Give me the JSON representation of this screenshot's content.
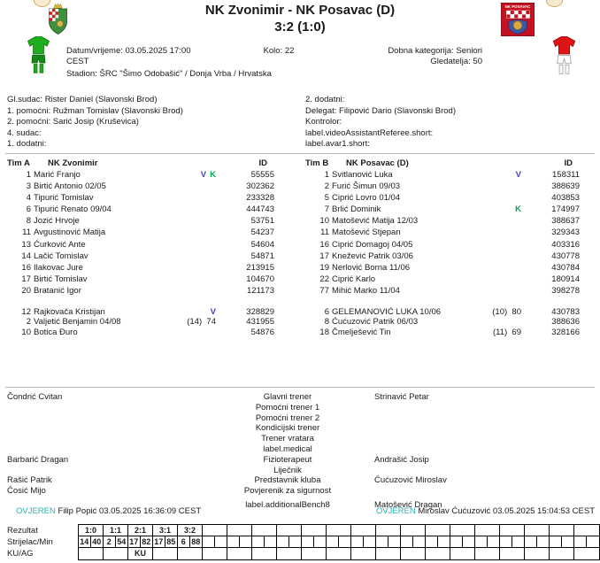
{
  "header": {
    "title_line1": "NK Zvonimir - NK Posavac (D)",
    "title_line2": "3:2 (1:0)",
    "datetime": "Datum/vrijeme: 03.05.2025 17:00",
    "timezone": "CEST",
    "stadium": "Stadion: ŠRC \"Šimo Odobašić\" / Donja Vrba / Hrvatska",
    "round": "Kolo: 22",
    "category": "Dobna kategorija: Seniori",
    "attendance": "Gledatelja: 50"
  },
  "officials": {
    "left": [
      "Gl.sudac: Rister Daniel (Slavonski Brod)",
      "1. pomoćni: Ružman Tomislav (Slavonski Brod)",
      "2. pomoćni: Sarić Josip (Kruševica)",
      "4. sudac:",
      "1. dodatni:"
    ],
    "right": [
      "2. dodatni:",
      "Delegat: Filipović Dario (Slavonski Brod)",
      "Kontrolor:",
      "label.videoAssistantReferee.short:",
      "label.avar1.short:"
    ]
  },
  "teams": {
    "team_a": {
      "label": "Tim A",
      "name": "NK Zvonimir",
      "id_header": "ID",
      "starters": [
        {
          "num": "1",
          "name": "Marić Franjo",
          "marks": [
            "V",
            "K"
          ],
          "note": "",
          "id": "55555"
        },
        {
          "num": "3",
          "name": "Birtić Antonio 02/05",
          "marks": [],
          "note": "",
          "id": "302362"
        },
        {
          "num": "4",
          "name": "Tipurić Tomislav",
          "marks": [],
          "note": "",
          "id": "233328"
        },
        {
          "num": "6",
          "name": "Tipurić Renato 09/04",
          "marks": [],
          "note": "",
          "id": "444743"
        },
        {
          "num": "8",
          "name": "Jozić Hrvoje",
          "marks": [],
          "note": "",
          "id": "53751"
        },
        {
          "num": "11",
          "name": "Avgustinović Matija",
          "marks": [],
          "note": "",
          "id": "54237"
        },
        {
          "num": "13",
          "name": "Ćurković Ante",
          "marks": [],
          "note": "",
          "id": "54604"
        },
        {
          "num": "14",
          "name": "Lačić Tomislav",
          "marks": [],
          "note": "",
          "id": "54871"
        },
        {
          "num": "16",
          "name": "Ilakovac Jure",
          "marks": [],
          "note": "",
          "id": "213915"
        },
        {
          "num": "17",
          "name": "Birtić Tomislav",
          "marks": [],
          "note": "",
          "id": "104670"
        },
        {
          "num": "20",
          "name": "Bratanić Igor",
          "marks": [],
          "note": "",
          "id": "121173"
        }
      ],
      "subs": [
        {
          "num": "12",
          "name": "Rajkovača Kristijan",
          "marks": [
            "V"
          ],
          "note": "",
          "id": "328829"
        },
        {
          "num": "2",
          "name": "Valjetić Benjamin 04/08",
          "marks": [],
          "note": "(14)  74",
          "id": "431955"
        },
        {
          "num": "10",
          "name": "Botica Đuro",
          "marks": [],
          "note": "",
          "id": "54876"
        }
      ]
    },
    "team_b": {
      "label": "Tim B",
      "name": "NK Posavac (D)",
      "id_header": "ID",
      "starters": [
        {
          "num": "1",
          "name": "Svitlanović Luka",
          "marks": [
            "V"
          ],
          "note": "",
          "id": "158311"
        },
        {
          "num": "2",
          "name": "Furić Šimun 09/03",
          "marks": [],
          "note": "",
          "id": "388639"
        },
        {
          "num": "5",
          "name": "Ciprić Lovro 01/04",
          "marks": [],
          "note": "",
          "id": "403853"
        },
        {
          "num": "7",
          "name": "Brlić Dominik",
          "marks": [
            "K"
          ],
          "note": "",
          "id": "174997"
        },
        {
          "num": "10",
          "name": "Matošević Matija 12/03",
          "marks": [],
          "note": "",
          "id": "388637"
        },
        {
          "num": "11",
          "name": "Matošević Stjepan",
          "marks": [],
          "note": "",
          "id": "329343"
        },
        {
          "num": "16",
          "name": "Ciprić Domagoj 04/05",
          "marks": [],
          "note": "",
          "id": "403316"
        },
        {
          "num": "17",
          "name": "Knežević Patrik 03/06",
          "marks": [],
          "note": "",
          "id": "430778"
        },
        {
          "num": "19",
          "name": "Nerlović Borna 11/06",
          "marks": [],
          "note": "",
          "id": "430784"
        },
        {
          "num": "22",
          "name": "Ciprić Karlo",
          "marks": [],
          "note": "",
          "id": "180914"
        },
        {
          "num": "77",
          "name": "Mihić Marko 11/04",
          "marks": [],
          "note": "",
          "id": "398278"
        }
      ],
      "subs": [
        {
          "num": "6",
          "name": "GELEMANOVIĆ LUKA 10/06",
          "marks": [],
          "note": "(10)  80",
          "id": "430783"
        },
        {
          "num": "8",
          "name": "Ćućuzović Patrik 06/03",
          "marks": [],
          "note": "",
          "id": "388636"
        },
        {
          "num": "18",
          "name": "Čmelješević Tin",
          "marks": [],
          "note": "(11)  69",
          "id": "328166"
        }
      ]
    }
  },
  "staff": {
    "rows": [
      {
        "left": "Čondrić Cvitan",
        "role": "Glavni trener",
        "right": "Strinavić Petar"
      },
      {
        "left": "",
        "role": "Pomoćni trener 1",
        "right": ""
      },
      {
        "left": "",
        "role": "Pomoćni trener 2",
        "right": ""
      },
      {
        "left": "",
        "role": "Kondicijski trener",
        "right": ""
      },
      {
        "left": "",
        "role": "Trener vratara",
        "right": ""
      },
      {
        "left": "",
        "role": "label.medical",
        "right": ""
      },
      {
        "left": "Barbarić Dragan",
        "role": "Fizioterapeut",
        "right": "Andrašić Josip"
      },
      {
        "left": "",
        "role": "Liječnik",
        "right": ""
      },
      {
        "left": "Rašić Patrik",
        "role": "Predstavnik kluba",
        "right": "Ćućuzović Miroslav"
      },
      {
        "left": "Ćosić Mijo",
        "role": "Povjerenik za sigurnost",
        "right": ""
      },
      {
        "left": "",
        "role": "label.additionalBench8",
        "right": "Matošević Dragan"
      }
    ]
  },
  "certification": {
    "left": {
      "status": "OVJEREN",
      "text": "Filip Popić 03.05.2025 16:36:09 CEST"
    },
    "right": {
      "status": "OVJEREN",
      "text": "Miroslav Ćućuzović 03.05.2025 15:04:53 CEST"
    }
  },
  "score_grid": {
    "row_labels": [
      "Rezultat",
      "Strijelac/Min",
      "KU/AG"
    ],
    "columns": 21,
    "results": [
      "1:0",
      "1:1",
      "2:1",
      "3:1",
      "3:2"
    ],
    "scorers": [
      [
        "14",
        "40"
      ],
      [
        "2",
        "54"
      ],
      [
        "17",
        "82"
      ],
      [
        "17",
        "85"
      ],
      [
        "6",
        "88"
      ]
    ],
    "ku_ag": {
      "col": 2,
      "value": "KU"
    }
  },
  "colors": {
    "badge_goalkeeper": "#4540cf",
    "badge_captain": "#00a651",
    "certified": "#2bb3ad",
    "home_kit": "#1fae1f",
    "away_kit": "#e01414"
  },
  "icons": {
    "home_crest": "club-crest-home-icon",
    "away_crest": "club-crest-away-icon",
    "home_kit": "kit-home-icon",
    "away_kit": "kit-away-icon"
  }
}
